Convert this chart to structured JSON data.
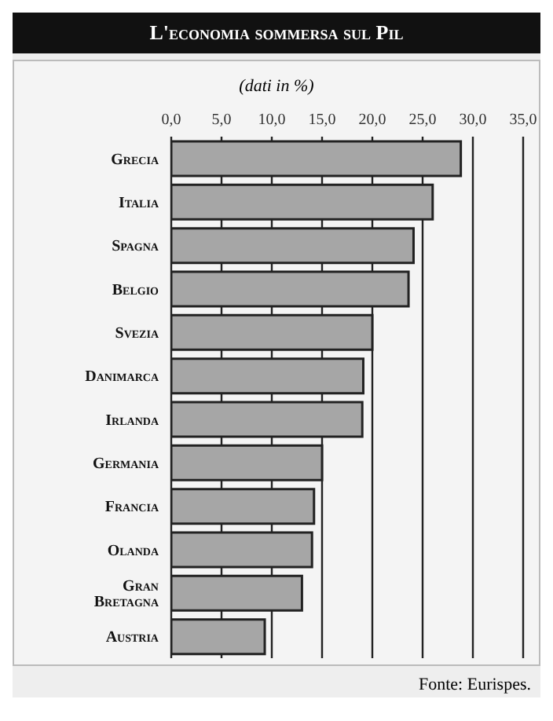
{
  "chart_data": {
    "type": "bar",
    "orientation": "horizontal",
    "title": "L'economia sommersa sul Pil",
    "subtitle": "(dati in %)",
    "categories": [
      "Grecia",
      "Italia",
      "Spagna",
      "Belgio",
      "Svezia",
      "Danimarca",
      "Irlanda",
      "Germania",
      "Francia",
      "Olanda",
      "Gran Bretagna",
      "Austria"
    ],
    "values": [
      28.8,
      26.0,
      24.1,
      23.6,
      20.0,
      19.1,
      19.0,
      15.0,
      14.2,
      14.0,
      13.0,
      9.3
    ],
    "color": "#a6a6a6",
    "xlim": [
      0,
      35
    ],
    "xticks": [
      {
        "value": 0,
        "label": "0,0"
      },
      {
        "value": 5,
        "label": "5,0"
      },
      {
        "value": 10,
        "label": "10,0"
      },
      {
        "value": 15,
        "label": "15,0"
      },
      {
        "value": 20,
        "label": "20,0"
      },
      {
        "value": 25,
        "label": "25,0"
      },
      {
        "value": 30,
        "label": "30,0"
      },
      {
        "value": 35,
        "label": "35,0"
      }
    ],
    "grid": "x",
    "annotations": [
      "Fonte: Eurispes."
    ]
  }
}
